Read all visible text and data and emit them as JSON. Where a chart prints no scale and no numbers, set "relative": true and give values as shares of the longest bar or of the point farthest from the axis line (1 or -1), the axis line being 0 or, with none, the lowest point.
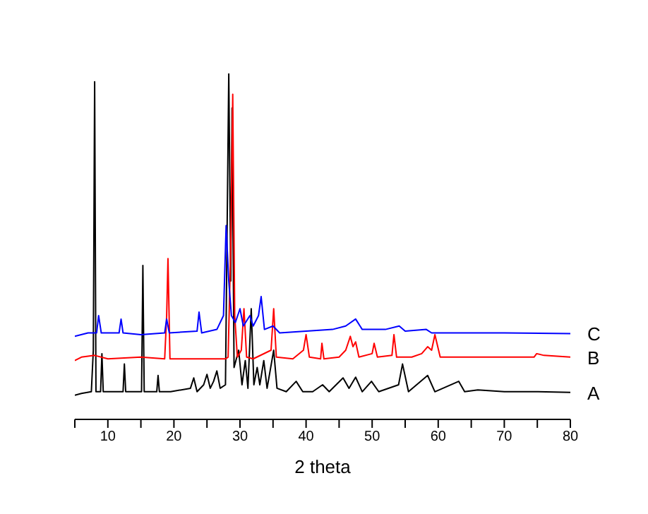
{
  "chart_data": {
    "type": "line",
    "relative": true,
    "xlabel": "2 theta",
    "xlim": [
      5,
      80
    ],
    "xticks": [
      {
        "value": 5,
        "label": null
      },
      10,
      {
        "value": 15,
        "label": null
      },
      20,
      {
        "value": 25,
        "label": null
      },
      30,
      {
        "value": 35,
        "label": null
      },
      40,
      {
        "value": 45,
        "label": null
      },
      50,
      {
        "value": 55,
        "label": null
      },
      60,
      {
        "value": 65,
        "label": null
      },
      70,
      {
        "value": 75,
        "label": null
      },
      80
    ],
    "marker": "none",
    "line_style": "solid",
    "series": [
      {
        "name": "A",
        "color": "#000000",
        "x": [
          5,
          6,
          7.5,
          7.8,
          8.0,
          8.2,
          8.9,
          9.1,
          9.3,
          12.3,
          12.5,
          12.7,
          15.1,
          15.3,
          15.5,
          17.4,
          17.6,
          17.8,
          19.5,
          22.5,
          23,
          23.5,
          24.5,
          25,
          25.5,
          26,
          26.5,
          27,
          27.8,
          28.3,
          28.6,
          28.8,
          29.1,
          29.8,
          30.3,
          30.8,
          31.2,
          31.7,
          32.1,
          32.6,
          33,
          33.6,
          34.1,
          35.1,
          35.6,
          37,
          38.5,
          39.5,
          41,
          42.5,
          43.5,
          45.6,
          46.5,
          47.5,
          48.5,
          49.9,
          51,
          54,
          54.6,
          55.5,
          58.4,
          59.5,
          63.1,
          64,
          66,
          70,
          75,
          80
        ],
        "values": [
          0.07,
          0.075,
          0.08,
          0.2,
          0.976,
          0.08,
          0.08,
          0.19,
          0.08,
          0.08,
          0.16,
          0.08,
          0.08,
          0.445,
          0.08,
          0.08,
          0.127,
          0.08,
          0.08,
          0.09,
          0.12,
          0.08,
          0.1,
          0.13,
          0.09,
          0.11,
          0.14,
          0.09,
          0.1,
          1.0,
          0.4,
          0.9,
          0.15,
          0.2,
          0.1,
          0.17,
          0.09,
          0.32,
          0.1,
          0.15,
          0.1,
          0.17,
          0.09,
          0.2,
          0.09,
          0.08,
          0.11,
          0.08,
          0.08,
          0.1,
          0.08,
          0.12,
          0.09,
          0.122,
          0.08,
          0.11,
          0.08,
          0.1,
          0.16,
          0.08,
          0.127,
          0.08,
          0.11,
          0.08,
          0.085,
          0.08,
          0.08,
          0.078
        ]
      },
      {
        "name": "B",
        "color": "#ff0000",
        "x": [
          5,
          6,
          8,
          10,
          15,
          18.6,
          18.9,
          19.1,
          19.4,
          22,
          27.8,
          28.2,
          28.6,
          28.9,
          29.2,
          29.6,
          30.2,
          30.6,
          31,
          32,
          34.7,
          35.1,
          35.5,
          38,
          39.6,
          40,
          40.5,
          42.2,
          42.4,
          42.7,
          45,
          46,
          46.7,
          47.1,
          47.5,
          48,
          50,
          50.3,
          50.8,
          53,
          53.3,
          53.7,
          56,
          57.5,
          58.4,
          59,
          59.5,
          60.3,
          65,
          70,
          74.5,
          74.9,
          76,
          80
        ],
        "values": [
          0.17,
          0.18,
          0.185,
          0.175,
          0.18,
          0.175,
          0.3,
          0.465,
          0.175,
          0.175,
          0.175,
          0.18,
          0.5,
          0.94,
          0.3,
          0.18,
          0.2,
          0.32,
          0.18,
          0.175,
          0.2,
          0.32,
          0.18,
          0.175,
          0.2,
          0.245,
          0.18,
          0.175,
          0.22,
          0.175,
          0.18,
          0.2,
          0.24,
          0.21,
          0.224,
          0.18,
          0.19,
          0.22,
          0.18,
          0.185,
          0.245,
          0.18,
          0.18,
          0.19,
          0.21,
          0.2,
          0.245,
          0.18,
          0.18,
          0.18,
          0.18,
          0.19,
          0.185,
          0.18
        ]
      },
      {
        "name": "C",
        "color": "#0000ff",
        "x": [
          5,
          7,
          8.3,
          8.6,
          9,
          11.7,
          12,
          12.3,
          15,
          18.6,
          18.9,
          19.3,
          23.5,
          23.8,
          24.2,
          26.5,
          27.5,
          27.9,
          28.3,
          28.7,
          29.3,
          30,
          30.5,
          31.5,
          32,
          32.8,
          33.2,
          33.7,
          35,
          36,
          40,
          44,
          46,
          47.5,
          48.5,
          52,
          54.1,
          55,
          58.2,
          59,
          65,
          70,
          80
        ],
        "values": [
          0.24,
          0.25,
          0.25,
          0.3,
          0.25,
          0.25,
          0.29,
          0.25,
          0.245,
          0.25,
          0.29,
          0.25,
          0.255,
          0.31,
          0.25,
          0.26,
          0.3,
          0.56,
          0.4,
          0.3,
          0.28,
          0.32,
          0.27,
          0.3,
          0.27,
          0.3,
          0.355,
          0.26,
          0.27,
          0.25,
          0.255,
          0.26,
          0.27,
          0.29,
          0.26,
          0.26,
          0.27,
          0.255,
          0.26,
          0.25,
          0.25,
          0.25,
          0.248
        ]
      }
    ]
  }
}
